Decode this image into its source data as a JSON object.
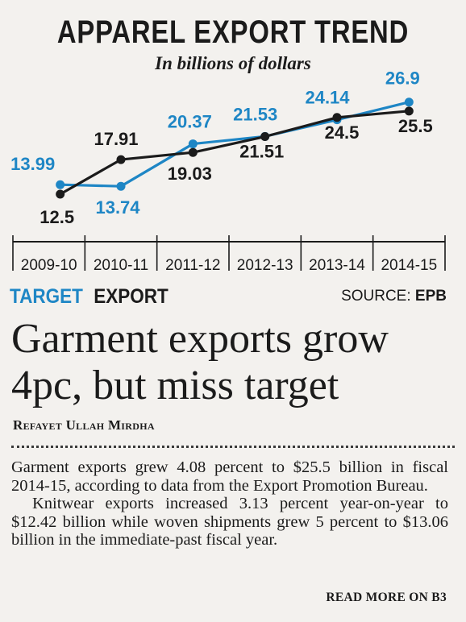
{
  "chart_data": {
    "type": "line",
    "title": "APPAREL EXPORT TREND",
    "subtitle": "In billions of dollars",
    "categories": [
      "2009-10",
      "2010-11",
      "2011-12",
      "2012-13",
      "2013-14",
      "2014-15"
    ],
    "series": [
      {
        "name": "TARGET",
        "color": "#1e86c5",
        "values": [
          13.99,
          13.74,
          20.37,
          21.53,
          24.14,
          26.9
        ],
        "labels": [
          "13.99",
          "13.74",
          "20.37",
          "21.53",
          "24.14",
          "26.9"
        ]
      },
      {
        "name": "EXPORT",
        "color": "#1b1b1b",
        "values": [
          12.5,
          17.91,
          19.03,
          21.51,
          24.5,
          25.5
        ],
        "labels": [
          "12.5",
          "17.91",
          "19.03",
          "21.51",
          "24.5",
          "25.5"
        ]
      }
    ],
    "ylim": [
      12,
      28
    ],
    "grid": false,
    "legend": "bottom-left"
  },
  "legend": {
    "target": "TARGET",
    "export": "EXPORT"
  },
  "source": {
    "label": "SOURCE:",
    "value": "EPB"
  },
  "article": {
    "headline": "Garment exports grow 4pc, but miss target",
    "byline": "Refayet Ullah Mirdha",
    "paragraphs": [
      "Garment exports grew 4.08 percent to $25.5 billion in fiscal 2014-15, according to data from the Export Promotion Bureau.",
      "Knitwear exports increased 3.13 percent year-on-year to $12.42 billion while woven shipments grew 5 percent to $13.06 billion in the immediate-past fiscal year."
    ],
    "read_more": "READ MORE ON B3"
  }
}
